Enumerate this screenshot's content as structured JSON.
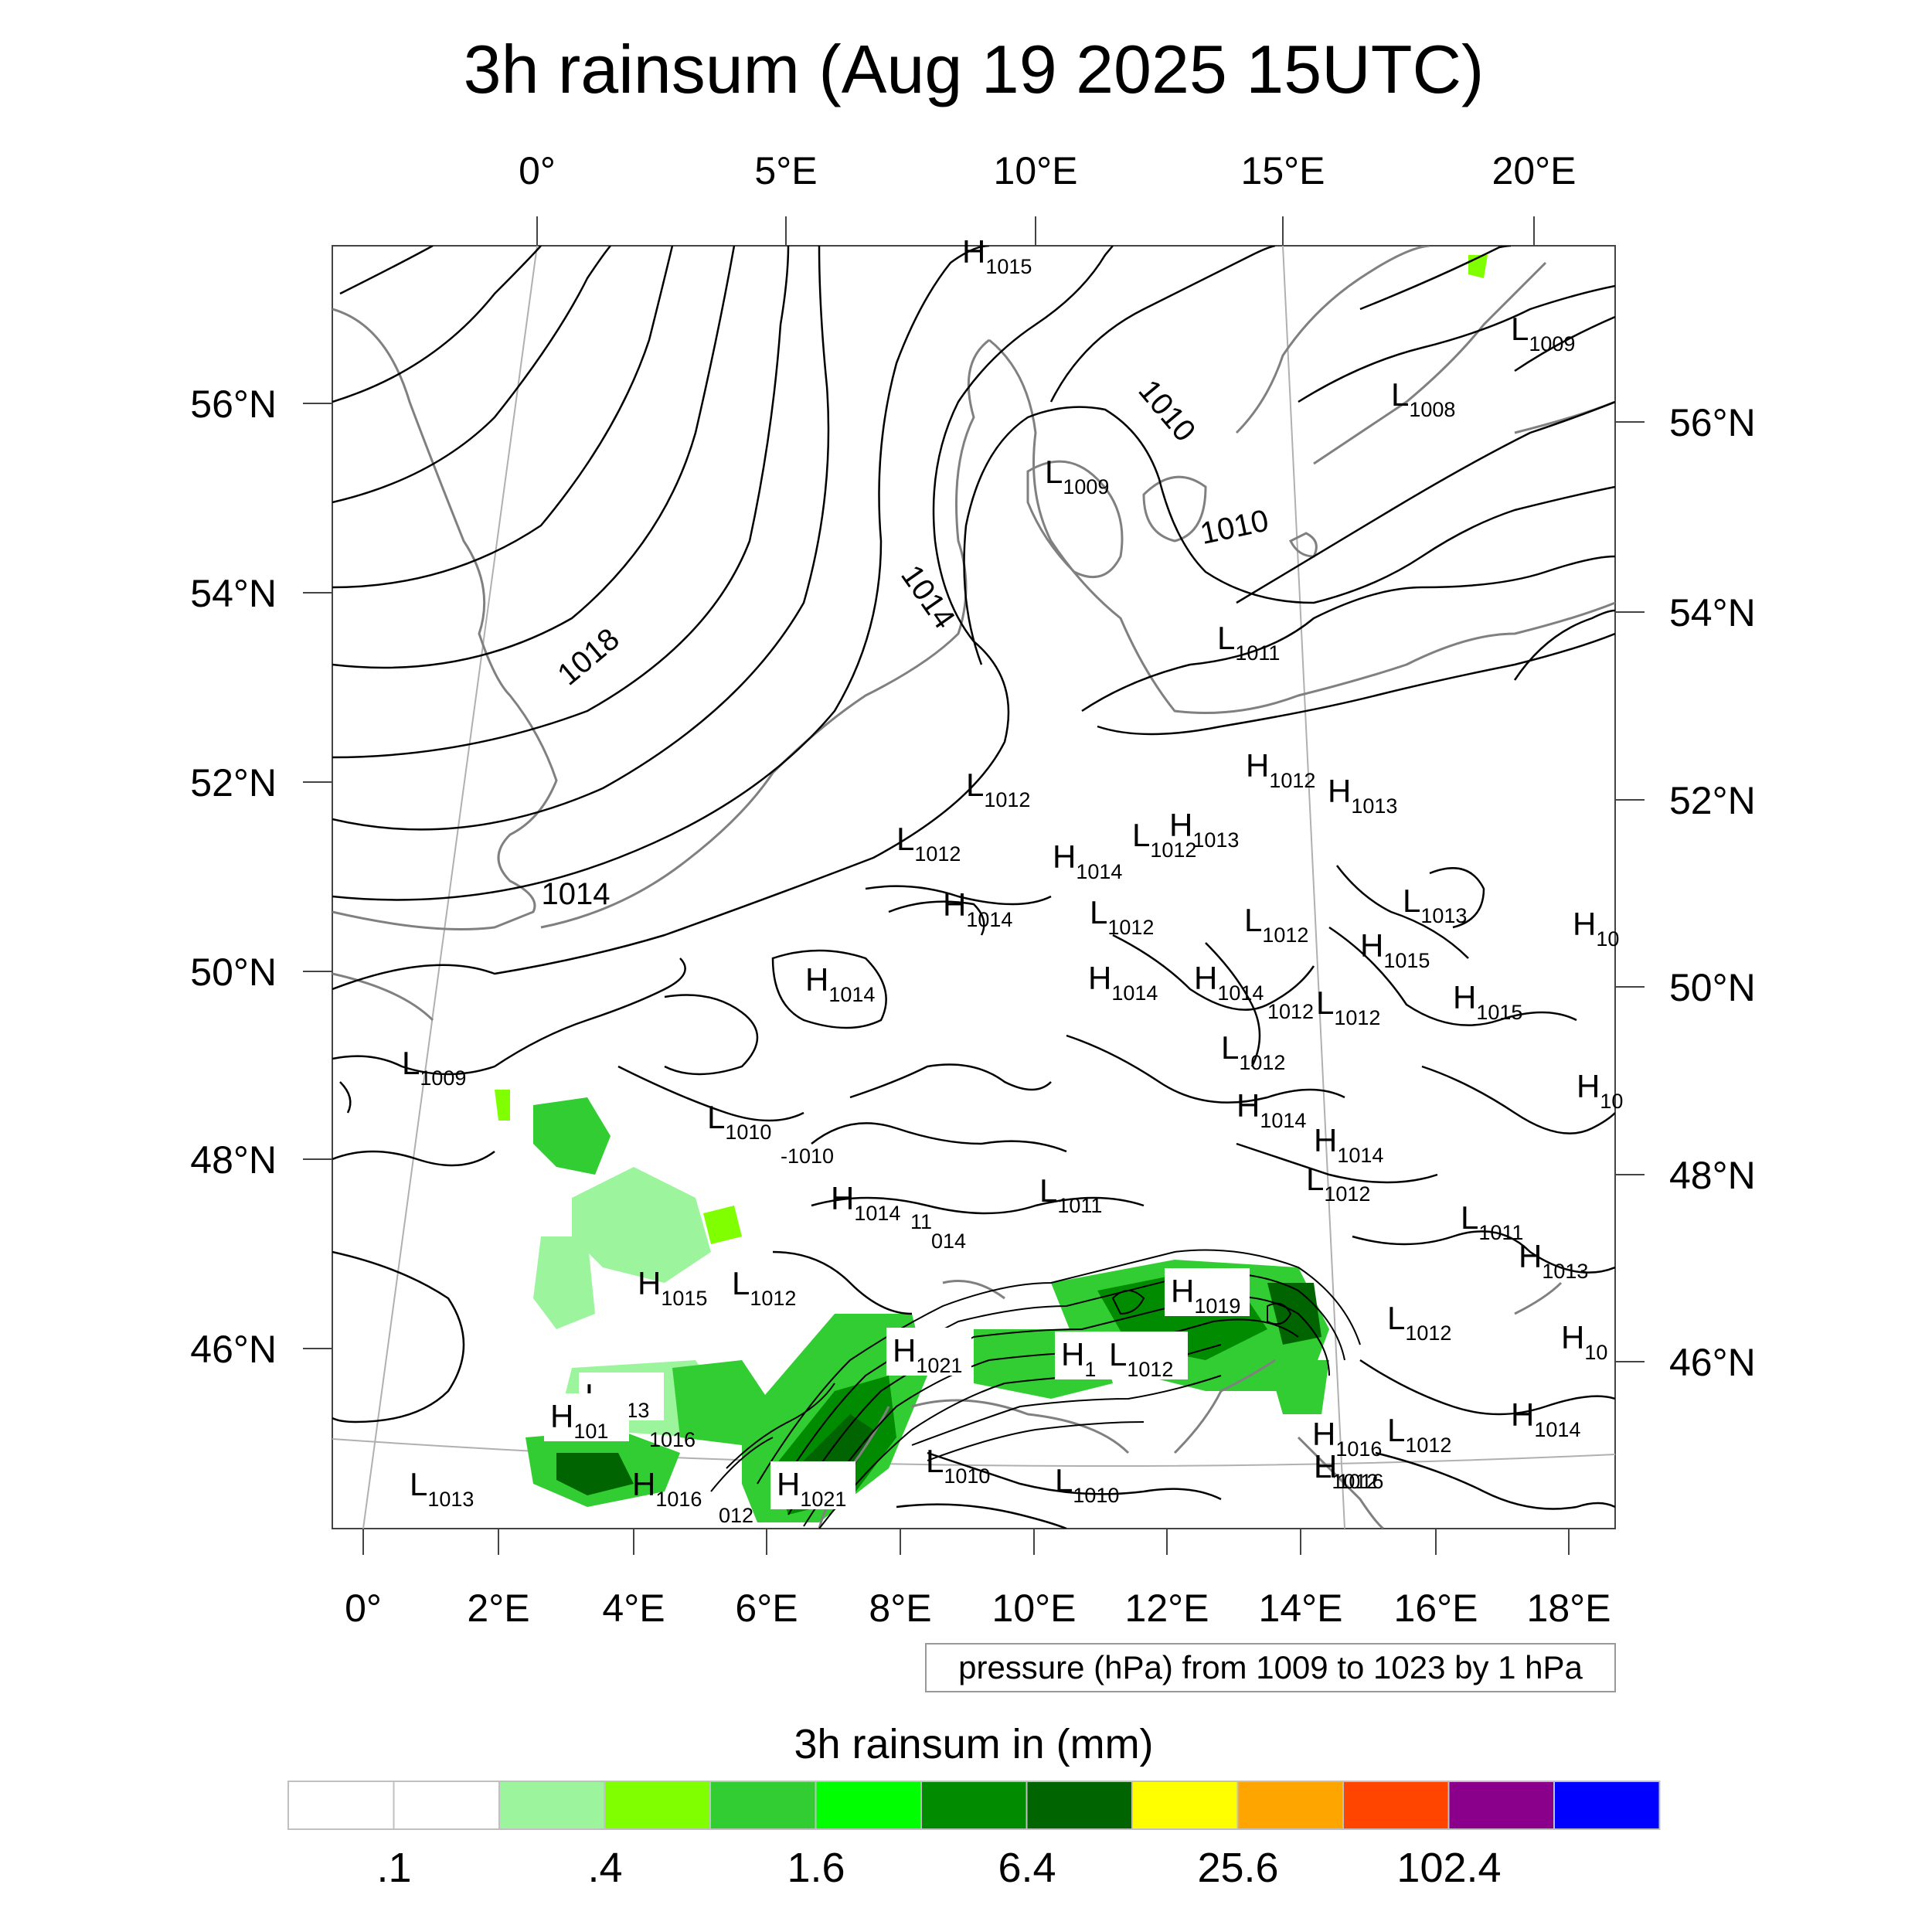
{
  "title": "3h rainsum (Aug 19 2025 15UTC)",
  "map": {
    "top_lon_labels": [
      "0°",
      "5°E",
      "10°E",
      "15°E",
      "20°E"
    ],
    "bottom_lon_labels": [
      "0°",
      "2°E",
      "4°E",
      "6°E",
      "8°E",
      "10°E",
      "12°E",
      "14°E",
      "16°E",
      "18°E"
    ],
    "left_lat_labels": [
      "56°N",
      "54°N",
      "52°N",
      "50°N",
      "48°N",
      "46°N"
    ],
    "right_lat_labels": [
      "56°N",
      "54°N",
      "52°N",
      "50°N",
      "48°N",
      "46°N"
    ],
    "contour_labels": [
      "1010",
      "1010",
      "1014",
      "1018",
      "1014"
    ],
    "pressure_centers": [
      {
        "t": "H",
        "v": "1015"
      },
      {
        "t": "L",
        "v": "1009"
      },
      {
        "t": "L",
        "v": "1008"
      },
      {
        "t": "L",
        "v": "1009"
      },
      {
        "t": "L",
        "v": "1011"
      },
      {
        "t": "L",
        "v": "1012"
      },
      {
        "t": "H",
        "v": "1012"
      },
      {
        "t": "H",
        "v": "1013"
      },
      {
        "t": "L",
        "v": "1012"
      },
      {
        "t": "H",
        "v": "1014"
      },
      {
        "t": "L",
        "v": "1012"
      },
      {
        "t": "H",
        "v": "1013"
      },
      {
        "t": "H",
        "v": "1014"
      },
      {
        "t": "L",
        "v": "1012"
      },
      {
        "t": "L",
        "v": "1012"
      },
      {
        "t": "L",
        "v": "1013"
      },
      {
        "t": "H",
        "v": "1015"
      },
      {
        "t": "H",
        "v": "10"
      },
      {
        "t": "H",
        "v": "1014"
      },
      {
        "t": "H",
        "v": "1014"
      },
      {
        "t": "H",
        "v": "1014"
      },
      {
        "t": "L",
        "v": "1012"
      },
      {
        "t": "H",
        "v": "1015"
      },
      {
        "t": "L",
        "v": "1012"
      },
      {
        "t": "L",
        "v": "1009"
      },
      {
        "t": "H",
        "v": "10"
      },
      {
        "t": "L",
        "v": "1010"
      },
      {
        "t": "H",
        "v": "1014"
      },
      {
        "t": "H",
        "v": "1014"
      },
      {
        "t": "L",
        "v": "1011"
      },
      {
        "t": "L",
        "v": "1012"
      },
      {
        "t": "H",
        "v": "1014"
      },
      {
        "t": "L",
        "v": "1011"
      },
      {
        "t": "H",
        "v": "1013"
      },
      {
        "t": "H",
        "v": "1015"
      },
      {
        "t": "L",
        "v": "1012"
      },
      {
        "t": "H",
        "v": "1019"
      },
      {
        "t": "L",
        "v": "1012"
      },
      {
        "t": "H",
        "v": "1021"
      },
      {
        "t": "H",
        "v": "1"
      },
      {
        "t": "L",
        "v": "1012"
      },
      {
        "t": "H",
        "v": "10"
      },
      {
        "t": "L",
        "v": "1013"
      },
      {
        "t": "H",
        "v": "101"
      },
      {
        "t": "H",
        "v": "1016"
      },
      {
        "t": "H",
        "v": "1016"
      },
      {
        "t": "L",
        "v": "1012"
      },
      {
        "t": "H",
        "v": "1014"
      },
      {
        "t": "L",
        "v": "1013"
      },
      {
        "t": "H",
        "v": "1016"
      },
      {
        "t": "H",
        "v": "1021"
      },
      {
        "t": "L",
        "v": "1010"
      },
      {
        "t": "L",
        "v": "1010"
      },
      {
        "t": "L",
        "v": "1012"
      }
    ],
    "fragment_labels": [
      "-1010",
      "1012",
      "11",
      "014",
      "012",
      "1016"
    ]
  },
  "info_label": "pressure (hPa) from 1009 to 1023 by 1 hPa",
  "colorbar": {
    "title": "3h rainsum in (mm)",
    "colors": [
      "#ffffff",
      "#ffffff",
      "#9cf59c",
      "#80ff00",
      "#32cd32",
      "#00ff00",
      "#008b00",
      "#006400",
      "#ffff00",
      "#ffa500",
      "#ff4500",
      "#8b008b",
      "#0000ff"
    ],
    "tick_labels": [
      ".1",
      ".4",
      "1.6",
      "6.4",
      "25.6",
      "102.4"
    ]
  }
}
